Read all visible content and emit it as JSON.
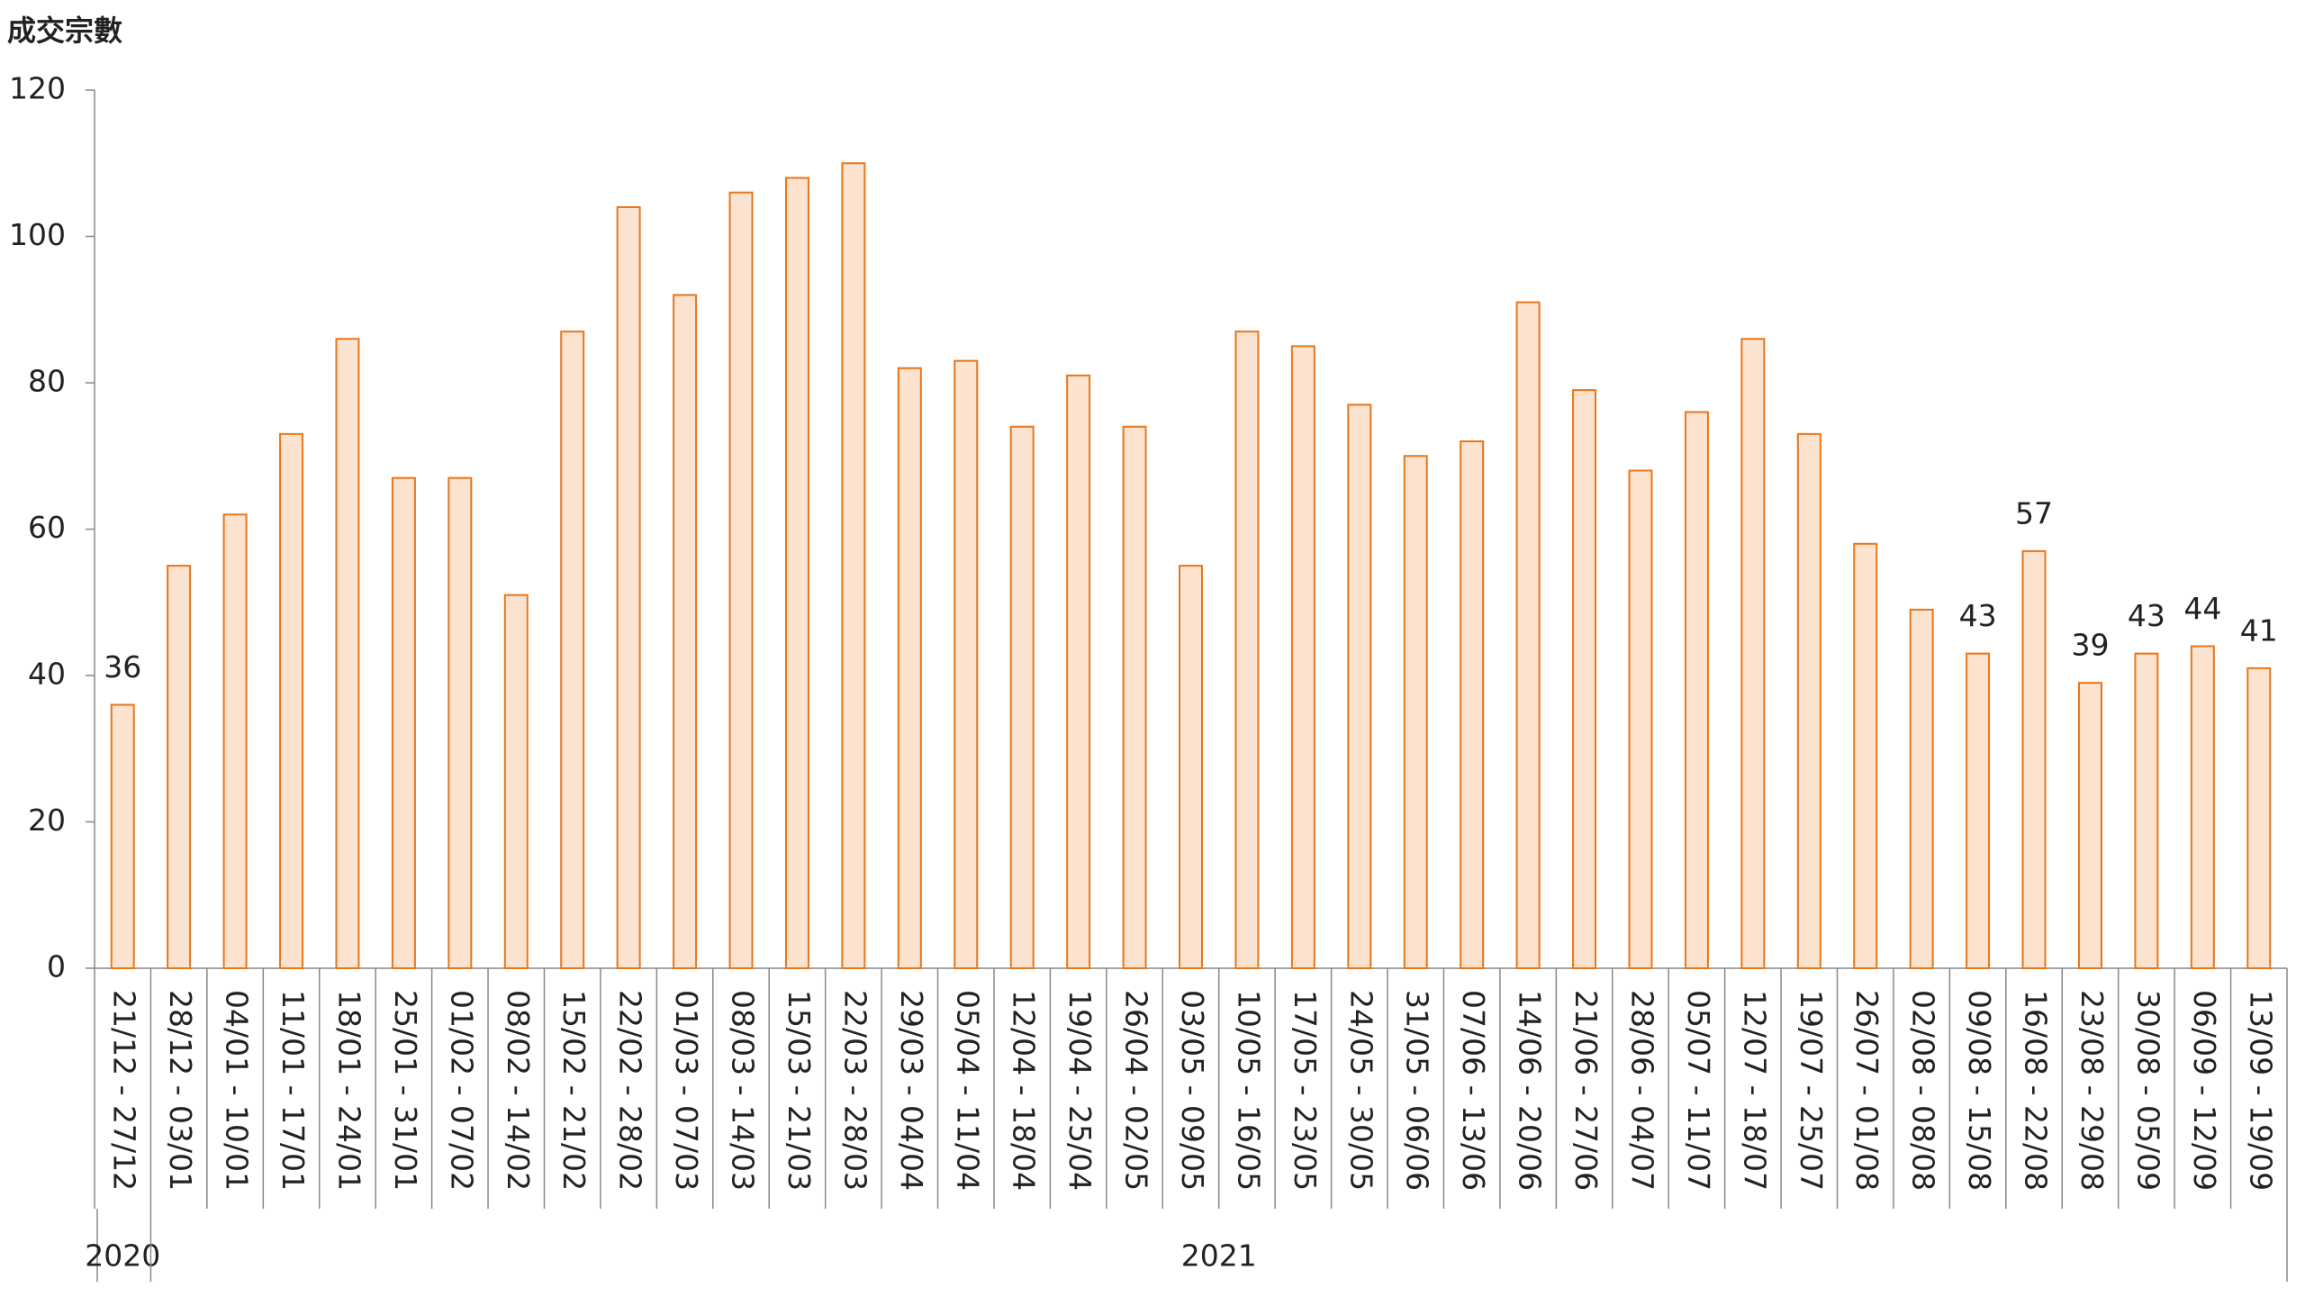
{
  "chart_data": {
    "type": "bar",
    "y_label": "成交宗數",
    "categories": [
      "21/12 - 27/12",
      "28/12 - 03/01",
      "04/01 - 10/01",
      "11/01 - 17/01",
      "18/01 - 24/01",
      "25/01 - 31/01",
      "01/02 - 07/02",
      "08/02 - 14/02",
      "15/02 - 21/02",
      "22/02 - 28/02",
      "01/03 - 07/03",
      "08/03 - 14/03",
      "15/03 - 21/03",
      "22/03 - 28/03",
      "29/03 - 04/04",
      "05/04 - 11/04",
      "12/04 - 18/04",
      "19/04 - 25/04",
      "26/04 - 02/05",
      "03/05 - 09/05",
      "10/05 - 16/05",
      "17/05 - 23/05",
      "24/05 - 30/05",
      "31/05 - 06/06",
      "07/06 - 13/06",
      "14/06 - 20/06",
      "21/06 - 27/06",
      "28/06 - 04/07",
      "05/07 - 11/07",
      "12/07 - 18/07",
      "19/07 - 25/07",
      "26/07 - 01/08",
      "02/08 - 08/08",
      "09/08 - 15/08",
      "16/08 - 22/08",
      "23/08 - 29/08",
      "30/08 - 05/09",
      "06/09 - 12/09",
      "13/09 - 19/09"
    ],
    "values": [
      36,
      55,
      62,
      73,
      86,
      67,
      67,
      51,
      87,
      104,
      92,
      106,
      108,
      110,
      82,
      83,
      74,
      81,
      74,
      55,
      87,
      85,
      77,
      70,
      72,
      91,
      79,
      68,
      76,
      86,
      73,
      58,
      49,
      43,
      57,
      39,
      43,
      44,
      41
    ],
    "data_label_indices": [
      0,
      33,
      34,
      35,
      36,
      37,
      38
    ],
    "groups": [
      {
        "label": "2020",
        "span": 1
      },
      {
        "label": "2021",
        "span": 38
      }
    ],
    "color": "#fbe3d0",
    "edge_color": "#e8761a",
    "ylim": [
      0,
      120
    ],
    "yticks": [
      0,
      20,
      40,
      60,
      80,
      100,
      120
    ],
    "grid": false
  }
}
